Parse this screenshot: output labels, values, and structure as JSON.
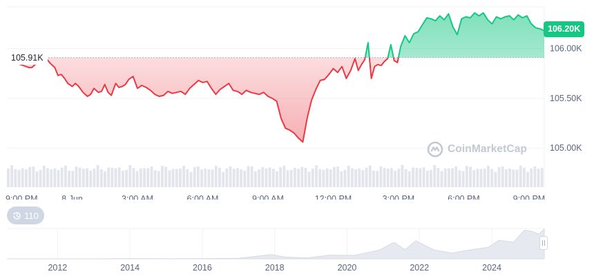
{
  "chart_data": {
    "type": "area",
    "reference_value": 105910,
    "reference_label": "105.91K",
    "current_value": 106200,
    "current_label": "106.20K",
    "ylim": [
      104800,
      106420
    ],
    "yticks": [
      {
        "value": 106000,
        "label": "106.00K"
      },
      {
        "value": 105500,
        "label": "105.50K"
      },
      {
        "value": 105000,
        "label": "105.00K"
      }
    ],
    "x_range": [
      0,
      24.7
    ],
    "xticks": [
      {
        "x": 0,
        "label": "9:00 PM"
      },
      {
        "x": 3,
        "label": "8 Jun"
      },
      {
        "x": 6,
        "label": "3:00 AM"
      },
      {
        "x": 9,
        "label": "6:00 AM"
      },
      {
        "x": 12,
        "label": "9:00 AM"
      },
      {
        "x": 15,
        "label": "12:00 PM"
      },
      {
        "x": 18,
        "label": "3:00 PM"
      },
      {
        "x": 21,
        "label": "6:00 PM"
      },
      {
        "x": 24,
        "label": "9:00 PM"
      }
    ],
    "series": [
      {
        "x": [
          0,
          0.25,
          0.5,
          1.0,
          1.15,
          1.3,
          1.5,
          1.7,
          1.85,
          2.0,
          2.2,
          2.35,
          2.5,
          2.65,
          2.8,
          3.0,
          3.15,
          3.3,
          3.5,
          3.7,
          3.85,
          4.0,
          4.2,
          4.35,
          4.5,
          4.65,
          4.8,
          5.0,
          5.15,
          5.3,
          5.45,
          5.6,
          5.8,
          6.0,
          6.2,
          6.4,
          6.6,
          6.8,
          7.0,
          7.2,
          7.4,
          7.6,
          7.8,
          8.0,
          8.2,
          8.4,
          8.6,
          8.8,
          9.0,
          9.2,
          9.4,
          9.6,
          9.8,
          10.0,
          10.2,
          10.4,
          10.6,
          10.8,
          11.0,
          11.2,
          11.4,
          11.6,
          11.8,
          12.0,
          12.2,
          12.4,
          12.6,
          12.8,
          13.0,
          13.2,
          13.4,
          13.6,
          13.8,
          14.0,
          14.2,
          14.4,
          14.6,
          14.8,
          15.0,
          15.2,
          15.4,
          15.6,
          15.8,
          16.0,
          16.15,
          16.3,
          16.45,
          16.6,
          16.75,
          16.9,
          17.05,
          17.2,
          17.35,
          17.5,
          17.65,
          17.8,
          17.95,
          18.1,
          18.3,
          18.5,
          18.7,
          18.9,
          19.1,
          19.3,
          19.5,
          19.7,
          19.9,
          20.1,
          20.3,
          20.5,
          20.7,
          20.9,
          21.1,
          21.3,
          21.5,
          21.7,
          21.9,
          22.1,
          22.3,
          22.5,
          22.7,
          22.9,
          23.1,
          23.3,
          23.5,
          23.7,
          23.9,
          24.1,
          24.3,
          24.5,
          24.7
        ],
        "values": [
          105940,
          105920,
          105850,
          105810,
          105810,
          105840,
          105870,
          105910,
          105890,
          105850,
          105810,
          105730,
          105740,
          105700,
          105650,
          105620,
          105650,
          105620,
          105560,
          105520,
          105540,
          105600,
          105560,
          105570,
          105640,
          105560,
          105530,
          105650,
          105610,
          105620,
          105640,
          105690,
          105720,
          105600,
          105630,
          105610,
          105580,
          105540,
          105520,
          105530,
          105570,
          105550,
          105560,
          105570,
          105540,
          105600,
          105640,
          105680,
          105660,
          105670,
          105600,
          105540,
          105590,
          105620,
          105650,
          105580,
          105570,
          105540,
          105580,
          105560,
          105550,
          105540,
          105560,
          105520,
          105500,
          105470,
          105300,
          105200,
          105180,
          105150,
          105100,
          105060,
          105300,
          105480,
          105590,
          105680,
          105690,
          105740,
          105800,
          105760,
          105820,
          105700,
          105780,
          105900,
          105780,
          105840,
          105890,
          106060,
          105700,
          105820,
          105840,
          105830,
          105870,
          105900,
          106040,
          105880,
          105860,
          106020,
          106130,
          106060,
          106150,
          106170,
          106240,
          106310,
          106300,
          106280,
          106330,
          106290,
          106350,
          106220,
          106140,
          106300,
          106320,
          106310,
          106360,
          106330,
          106360,
          106290,
          106250,
          106320,
          106300,
          106320,
          106330,
          106290,
          106340,
          106310,
          106330,
          106250,
          106210,
          106200,
          106180
        ]
      }
    ],
    "colors": {
      "up": "#16c784",
      "down": "#ea3943"
    }
  },
  "volume_bars": {
    "count": 150,
    "level": 0.8
  },
  "navigator": {
    "type": "area",
    "xticks": [
      {
        "x": 2012,
        "label": "2012"
      },
      {
        "x": 2014,
        "label": "2014"
      },
      {
        "x": 2016,
        "label": "2016"
      },
      {
        "x": 2018,
        "label": "2018"
      },
      {
        "x": 2020,
        "label": "2020"
      },
      {
        "x": 2022,
        "label": "2022"
      },
      {
        "x": 2024,
        "label": "2024"
      }
    ],
    "x_range": [
      2010.6,
      2025.45
    ],
    "ylim": [
      0,
      107000
    ],
    "x": [
      2010.6,
      2012,
      2013,
      2014,
      2015,
      2016,
      2017,
      2017.9,
      2018.3,
      2018.9,
      2019.5,
      2020.2,
      2020.9,
      2021.3,
      2021.6,
      2021.9,
      2022.4,
      2022.9,
      2023.3,
      2023.9,
      2024.2,
      2024.6,
      2024.9,
      2025.1,
      2025.3,
      2025.45
    ],
    "values": [
      0,
      0,
      50,
      600,
      250,
      400,
      2000,
      17000,
      9000,
      4000,
      11000,
      9000,
      30000,
      60000,
      35000,
      65000,
      30000,
      17000,
      28000,
      42000,
      68000,
      60000,
      100000,
      95000,
      85000,
      106000
    ]
  },
  "history_button": {
    "label": "110",
    "icon": "history-icon"
  },
  "watermark": {
    "text": "CoinMarketCap",
    "icon": "coinmarketcap-logo"
  }
}
